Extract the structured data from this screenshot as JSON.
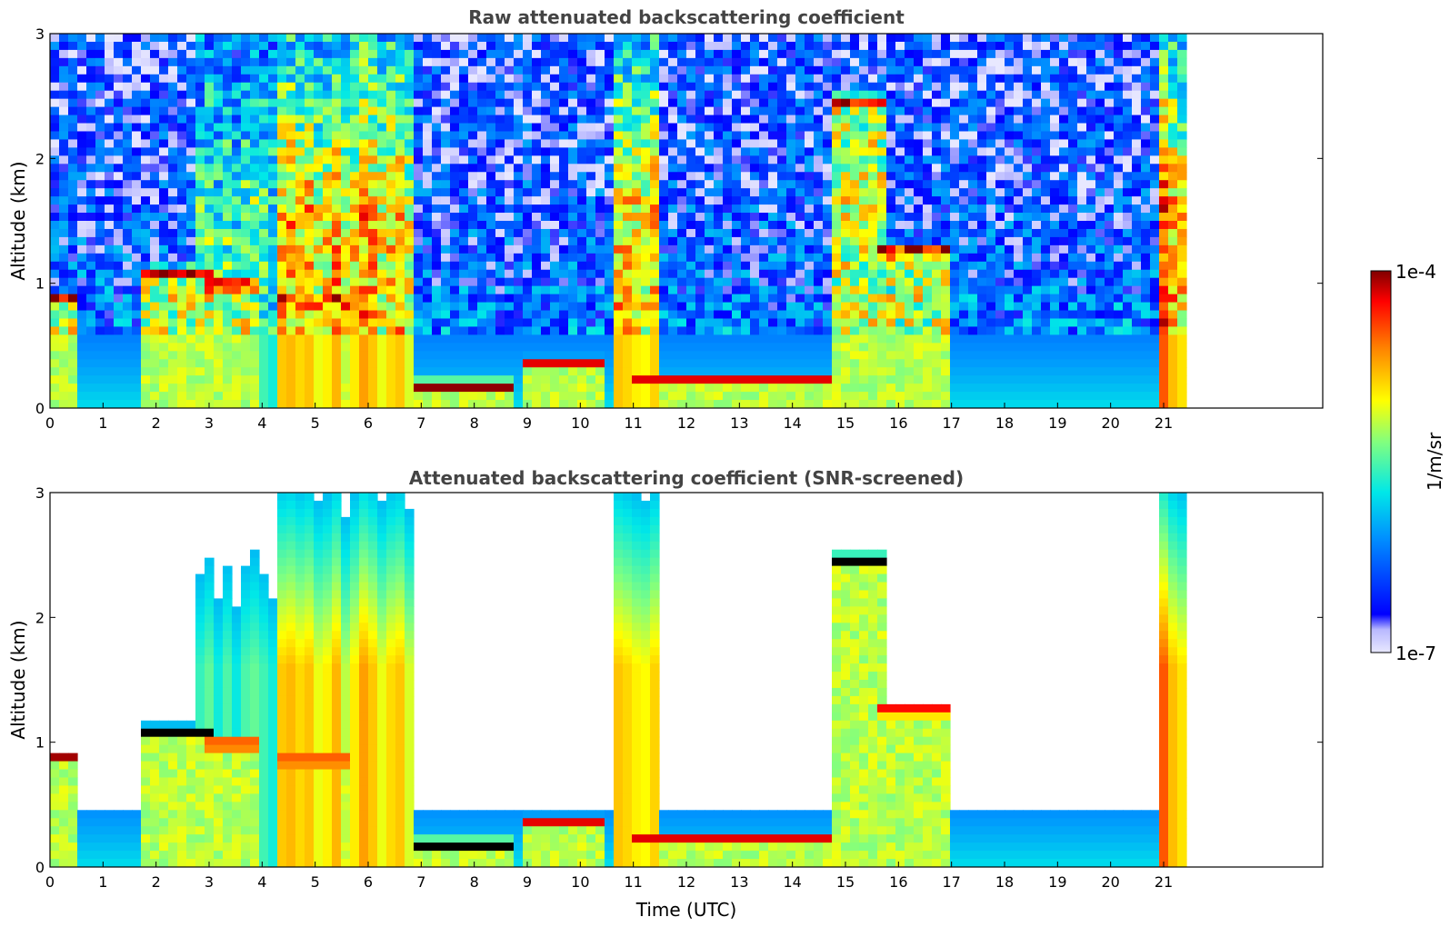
{
  "chart_data": [
    {
      "type": "heatmap",
      "title": "Raw attenuated backscattering coefficient",
      "xlabel": "",
      "ylabel": "Altitude (km)",
      "xlim": [
        0,
        24
      ],
      "ylim": [
        0,
        3
      ],
      "x_ticks": [
        "0",
        "1",
        "2",
        "3",
        "4",
        "5",
        "6",
        "7",
        "8",
        "9",
        "10",
        "11",
        "12",
        "13",
        "14",
        "15",
        "16",
        "17",
        "18",
        "19",
        "20",
        "21"
      ],
      "y_ticks": [
        "0",
        "1",
        "2",
        "3"
      ],
      "data_end_time": 21.4,
      "colorscale": "jet",
      "screened": false,
      "features": [
        {
          "kind": "cloud_layer",
          "t0": 0.0,
          "t1": 0.6,
          "alt": 0.87,
          "level": 1.0
        },
        {
          "kind": "cloud_layer",
          "t0": 1.7,
          "t1": 3.0,
          "alt": 1.07,
          "level": 1.0
        },
        {
          "kind": "cloud_layer",
          "t0": 3.0,
          "t1": 4.0,
          "alt": 0.98,
          "level": 1.0
        },
        {
          "kind": "cloud_layer",
          "t0": 4.3,
          "t1": 5.6,
          "alt": 0.85,
          "level": 1.0
        },
        {
          "kind": "cloud_layer",
          "t0": 6.9,
          "t1": 8.8,
          "alt": 0.17,
          "level": 1.0
        },
        {
          "kind": "cloud_layer",
          "t0": 8.9,
          "t1": 10.4,
          "alt": 0.35,
          "level": 0.95
        },
        {
          "kind": "cloud_layer",
          "t0": 11.0,
          "t1": 14.8,
          "alt": 0.22,
          "level": 0.95
        },
        {
          "kind": "cloud_layer",
          "t0": 15.6,
          "t1": 17.0,
          "alt": 1.25,
          "level": 1.0
        },
        {
          "kind": "cloud_layer",
          "t0": 14.8,
          "t1": 15.8,
          "alt": 2.45,
          "level": 1.0
        },
        {
          "kind": "rain_column",
          "t0": 2.7,
          "t1": 4.3,
          "level": 0.55
        },
        {
          "kind": "rain_column",
          "t0": 4.3,
          "t1": 6.8,
          "level": 0.8
        },
        {
          "kind": "rain_column",
          "t0": 10.6,
          "t1": 11.4,
          "level": 0.85
        },
        {
          "kind": "rain_column",
          "t0": 20.9,
          "t1": 21.4,
          "level": 0.85
        }
      ]
    },
    {
      "type": "heatmap",
      "title": "Attenuated backscattering coefficient (SNR-screened)",
      "xlabel": "Time (UTC)",
      "ylabel": "Altitude (km)",
      "xlim": [
        0,
        24
      ],
      "ylim": [
        0,
        3
      ],
      "x_ticks": [
        "0",
        "1",
        "2",
        "3",
        "4",
        "5",
        "6",
        "7",
        "8",
        "9",
        "10",
        "11",
        "12",
        "13",
        "14",
        "15",
        "16",
        "17",
        "18",
        "19",
        "20",
        "21"
      ],
      "y_ticks": [
        "0",
        "1",
        "2",
        "3"
      ],
      "data_end_time": 21.4,
      "colorscale": "jet",
      "screened": true
    }
  ],
  "colorbar": {
    "label": "1/m/sr",
    "min_label": "1e-7",
    "max_label": "1e-4",
    "scale": "log",
    "colors": [
      "#e8e8ff",
      "#0000ff",
      "#0090ff",
      "#00e8e8",
      "#80ff80",
      "#ffff00",
      "#ff8000",
      "#ff0000",
      "#800000"
    ]
  }
}
